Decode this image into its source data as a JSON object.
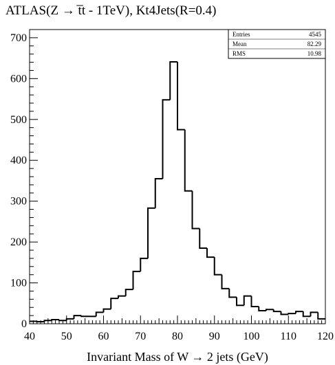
{
  "chart_data": {
    "type": "bar",
    "subtype": "histogram",
    "title": "ATLAS(Z → t̅t - 1TeV), Kt4Jets(R=0.4)",
    "xlabel": "Invariant Mass of W → 2 jets (GeV)",
    "ylabel": "",
    "xlim": [
      40,
      120
    ],
    "ylim": [
      0,
      720
    ],
    "x_ticks": [
      "40",
      "50",
      "60",
      "70",
      "80",
      "90",
      "100",
      "110",
      "120"
    ],
    "y_ticks": [
      "0",
      "100",
      "200",
      "300",
      "400",
      "500",
      "600",
      "700"
    ],
    "bin_width": 2,
    "bin_edges_start": 40,
    "values": [
      6,
      5,
      8,
      10,
      8,
      12,
      20,
      18,
      18,
      28,
      36,
      62,
      68,
      84,
      128,
      160,
      283,
      355,
      548,
      641,
      475,
      325,
      233,
      185,
      163,
      120,
      86,
      65,
      45,
      68,
      42,
      32,
      35,
      30,
      23,
      25,
      30,
      18,
      28,
      12
    ],
    "stats": [
      {
        "label": "Entries",
        "value": "4545"
      },
      {
        "label": "Mean",
        "value": "82.29"
      },
      {
        "label": "RMS",
        "value": "10.98"
      }
    ],
    "grid": false,
    "legend": "none",
    "line_color": "#000000"
  }
}
